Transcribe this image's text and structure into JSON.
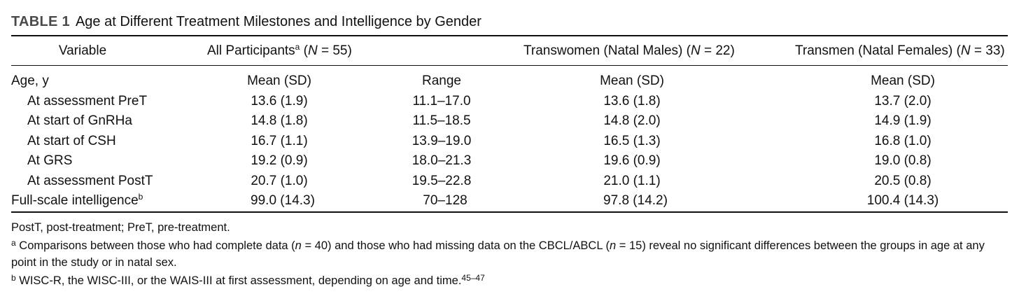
{
  "caption": {
    "label": "TABLE 1",
    "title": "Age at Different Treatment Milestones and Intelligence by Gender"
  },
  "header": {
    "variable": "Variable",
    "all_participants": "All Participants",
    "all_sup": "a",
    "all_n_label": "N",
    "all_n": " = 55)",
    "transwomen": "Transwomen (Natal Males) (",
    "transwomen_n_label": "N",
    "transwomen_n": " = 22)",
    "transmen": "Transmen (Natal Females) (",
    "transmen_n_label": "N",
    "transmen_n": " = 33)"
  },
  "subheader": {
    "label": "Age, y",
    "col1": "Mean (SD)",
    "col2": "Range",
    "col3": "Mean (SD)",
    "col4": "Mean (SD)"
  },
  "rows": [
    {
      "label": "At assessment PreT",
      "all_mean": "13.6 (1.9)",
      "range": "11.1–17.0",
      "tw_mean": "13.6 (1.8)",
      "tm_mean": "13.7 (2.0)"
    },
    {
      "label": "At start of GnRHa",
      "all_mean": "14.8 (1.8)",
      "range": "11.5–18.5",
      "tw_mean": "14.8 (2.0)",
      "tm_mean": "14.9 (1.9)"
    },
    {
      "label": "At start of CSH",
      "all_mean": "16.7 (1.1)",
      "range": "13.9–19.0",
      "tw_mean": "16.5 (1.3)",
      "tm_mean": "16.8 (1.0)"
    },
    {
      "label": "At GRS",
      "all_mean": "19.2 (0.9)",
      "range": "18.0–21.3",
      "tw_mean": "19.6 (0.9)",
      "tm_mean": "19.0 (0.8)"
    },
    {
      "label": "At assessment PostT",
      "all_mean": "20.7 (1.0)",
      "range": "19.5–22.8",
      "tw_mean": "21.0 (1.1)",
      "tm_mean": "20.5 (0.8)"
    }
  ],
  "intelligence_row": {
    "label": "Full-scale intelligence",
    "sup": "b",
    "all_mean": "99.0 (14.3)",
    "range": "70–128",
    "tw_mean": "97.8 (14.2)",
    "tm_mean": "100.4 (14.3)"
  },
  "footnotes": {
    "abbrev": "PostT, post-treatment; PreT, pre-treatment.",
    "a_marker": "a",
    "a_text_1": " Comparisons between those who had complete data (",
    "a_n1_label": "n",
    "a_text_2": " = 40) and those who had missing data on the CBCL/ABCL (",
    "a_n2_label": "n",
    "a_text_3": " = 15) reveal no significant differences between the groups in age at any",
    "a_text_4": "point in the study or in natal sex.",
    "b_marker": "b",
    "b_text": " WISC-R, the WISC-III, or the WAIS-III at first assessment, depending on age and time.",
    "b_ref": "45–47"
  }
}
